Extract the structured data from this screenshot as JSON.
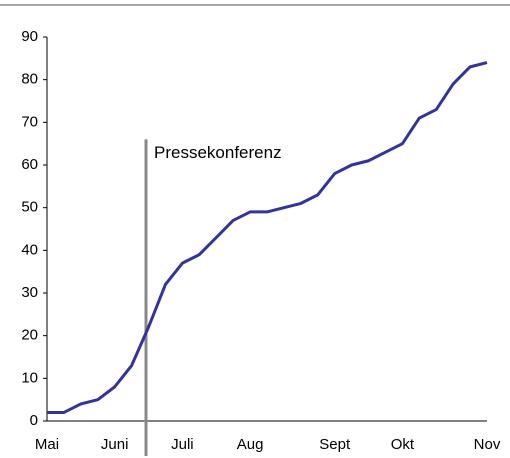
{
  "chart_data": {
    "type": "line",
    "categories": [
      "Mai",
      null,
      null,
      null,
      "Juni",
      null,
      null,
      null,
      "Juli",
      null,
      null,
      null,
      "Aug",
      null,
      null,
      null,
      null,
      "Sept",
      null,
      null,
      null,
      "Okt",
      null,
      null,
      null,
      null,
      "Nov"
    ],
    "series": [
      {
        "color": "#333399",
        "values": [
          2,
          2,
          4,
          5,
          8,
          13,
          22,
          32,
          37,
          39,
          43,
          47,
          49,
          49,
          50,
          51,
          53,
          58,
          60,
          61,
          63,
          65,
          71,
          73,
          79,
          83,
          84
        ]
      }
    ],
    "ylim": [
      0,
      90
    ],
    "yticks": [
      0,
      10,
      20,
      30,
      40,
      50,
      60,
      70,
      80,
      90
    ],
    "grid": false,
    "annotations": [
      {
        "text": "Pressekonferenz",
        "x": 5.85,
        "y": 66,
        "color": "#888888"
      }
    ]
  }
}
